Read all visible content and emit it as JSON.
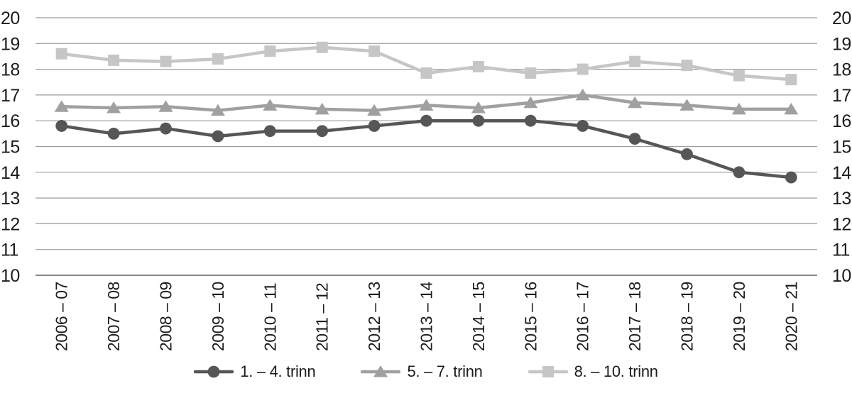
{
  "figure": {
    "background": "#ffffff",
    "text_color": "#1c1c1c"
  },
  "chart_data": {
    "type": "line",
    "title": "",
    "xlabel": "",
    "ylabel": "",
    "categories": [
      "2006 – 07",
      "2007 – 08",
      "2008 – 09",
      "2009 – 10",
      "2010 – 11",
      "2011 – 12",
      "2012 – 13",
      "2013 – 14",
      "2014 – 15",
      "2015 – 16",
      "2016 – 17",
      "2017 – 18",
      "2018 – 19",
      "2019 – 20",
      "2020 – 21"
    ],
    "series": [
      {
        "name": "1. – 4. trinn",
        "marker": "circle",
        "color": "#565656",
        "values": [
          15.8,
          15.5,
          15.7,
          15.4,
          15.6,
          15.6,
          15.8,
          16.0,
          16.0,
          16.0,
          15.8,
          15.3,
          14.7,
          14.0,
          13.8
        ]
      },
      {
        "name": "5. – 7. trinn",
        "marker": "triangle",
        "color": "#a0a0a0",
        "values": [
          16.55,
          16.5,
          16.55,
          16.4,
          16.6,
          16.45,
          16.4,
          16.6,
          16.5,
          16.7,
          17.0,
          16.7,
          16.6,
          16.45,
          16.45
        ]
      },
      {
        "name": "8. – 10. trinn",
        "marker": "square",
        "color": "#c6c6c6",
        "values": [
          18.6,
          18.35,
          18.3,
          18.4,
          18.7,
          18.85,
          18.7,
          17.85,
          18.1,
          17.85,
          18.0,
          18.3,
          18.15,
          17.75,
          17.6
        ]
      }
    ],
    "ylim": [
      10,
      20
    ],
    "yticks": [
      10,
      11,
      12,
      13,
      14,
      15,
      16,
      17,
      18,
      19,
      20
    ],
    "y_axis_sides": "both",
    "grid": "horizontal",
    "gridline_color": "#9c9c9c",
    "baseline_color": "#888888",
    "legend_position": "bottom",
    "x_tick_rotation": -90
  }
}
